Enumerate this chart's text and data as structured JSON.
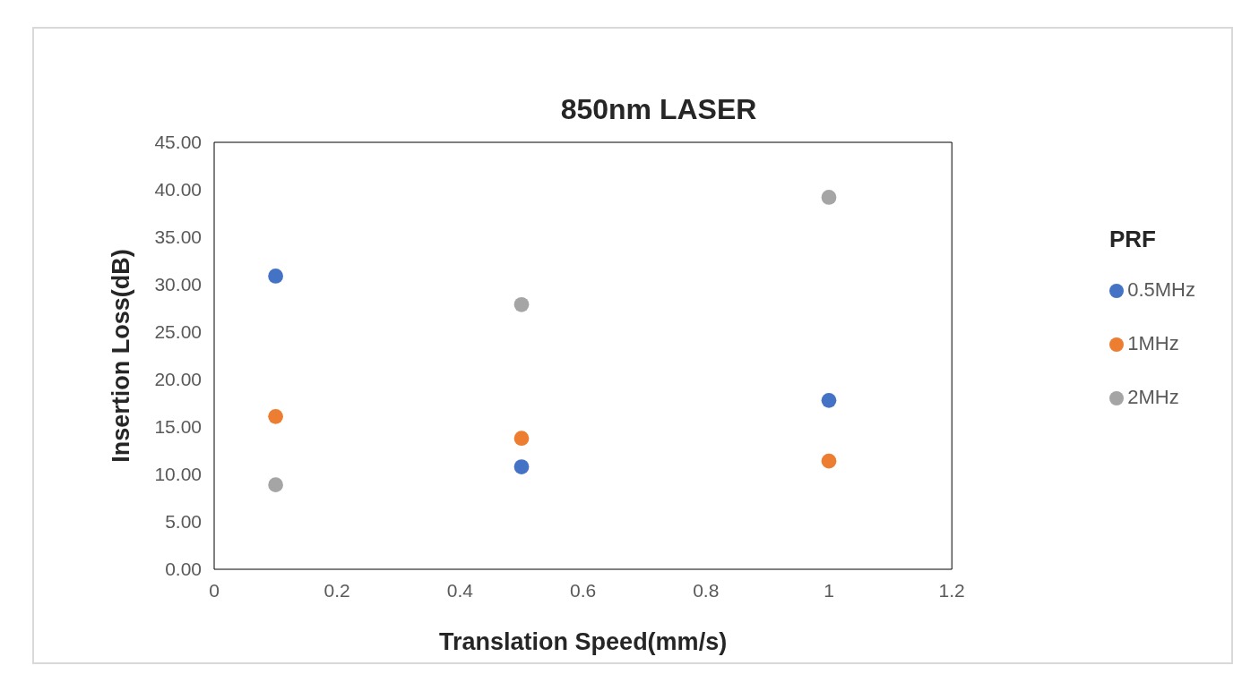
{
  "chart_data": {
    "type": "scatter",
    "title": "850nm LASER",
    "xlabel": "Translation Speed(mm/s)",
    "ylabel": "Insertion Loss(dB)",
    "legend_title": "PRF",
    "x": [
      0.1,
      0.5,
      1
    ],
    "series": [
      {
        "name": "0.5MHz",
        "color": "#4472c4",
        "values": [
          30.9,
          10.8,
          17.8
        ]
      },
      {
        "name": "1MHz",
        "color": "#ed7d31",
        "values": [
          16.1,
          13.8,
          11.4
        ]
      },
      {
        "name": "2MHz",
        "color": "#a5a5a5",
        "values": [
          8.9,
          27.9,
          39.2
        ]
      }
    ],
    "xlim": [
      0,
      1.2
    ],
    "xticks": [
      0,
      0.2,
      0.4,
      0.6,
      0.8,
      1,
      1.2
    ],
    "ylim": [
      0,
      45
    ],
    "yticks": [
      {
        "value": 0,
        "label": "0.00"
      },
      {
        "value": 5,
        "label": "5.00"
      },
      {
        "value": 10,
        "label": "10.00"
      },
      {
        "value": 15,
        "label": "15.00"
      },
      {
        "value": 20,
        "label": "20.00"
      },
      {
        "value": 25,
        "label": "25.00"
      },
      {
        "value": 30,
        "label": "30.00"
      },
      {
        "value": 35,
        "label": "35.00"
      },
      {
        "value": 40,
        "label": "40.00"
      },
      {
        "value": 45,
        "label": "45.00"
      }
    ],
    "grid": false,
    "legend": "right",
    "marker": "circle"
  }
}
